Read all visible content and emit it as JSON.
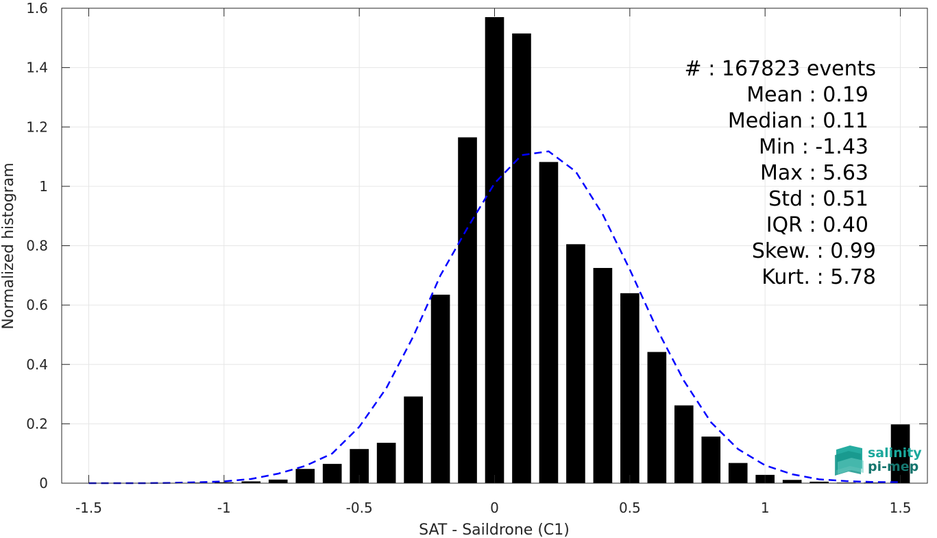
{
  "chart_data": {
    "type": "bar",
    "title": "",
    "xlabel": "SAT - Saildrone (C1)",
    "ylabel": "Normalized histogram",
    "xlim": [
      -1.6,
      1.6
    ],
    "ylim": [
      0,
      1.6
    ],
    "grid": true,
    "xticks": [
      -1.5,
      -1,
      -0.5,
      0,
      0.5,
      1,
      1.5
    ],
    "xtick_labels": [
      "-1.5",
      "-1",
      "-0.5",
      "0",
      "0.5",
      "1",
      "1.5"
    ],
    "yticks": [
      0,
      0.2,
      0.4,
      0.6,
      0.8,
      1,
      1.2,
      1.4,
      1.6
    ],
    "ytick_labels": [
      "0",
      "0.2",
      "0.4",
      "0.6",
      "0.8",
      "1",
      "1.2",
      "1.4",
      "1.6"
    ],
    "bar_width": 0.07,
    "bar_color": "#000000",
    "bars": {
      "x": [
        -1.5,
        -1.4,
        -1.3,
        -1.2,
        -1.1,
        -1.0,
        -0.9,
        -0.8,
        -0.7,
        -0.6,
        -0.5,
        -0.4,
        -0.3,
        -0.2,
        -0.1,
        0.0,
        0.1,
        0.2,
        0.3,
        0.4,
        0.5,
        0.6,
        0.7,
        0.8,
        0.9,
        1.0,
        1.1,
        1.2,
        1.3,
        1.4,
        1.5
      ],
      "values": [
        0.0005,
        0.0005,
        0.001,
        0.001,
        0.002,
        0.003,
        0.006,
        0.012,
        0.048,
        0.065,
        0.115,
        0.136,
        0.292,
        0.635,
        1.165,
        1.57,
        1.515,
        1.082,
        0.805,
        0.725,
        0.64,
        0.442,
        0.262,
        0.157,
        0.068,
        0.028,
        0.011,
        0.005,
        0.002,
        0.002,
        0.198
      ]
    },
    "fit_curve": {
      "style": "dashed",
      "color": "#0000ff",
      "x": [
        -1.5,
        -1.4,
        -1.3,
        -1.2,
        -1.1,
        -1.0,
        -0.9,
        -0.8,
        -0.7,
        -0.6,
        -0.5,
        -0.4,
        -0.3,
        -0.2,
        -0.1,
        0.0,
        0.1,
        0.2,
        0.3,
        0.4,
        0.5,
        0.6,
        0.7,
        0.8,
        0.9,
        1.0,
        1.1,
        1.2,
        1.3,
        1.4,
        1.5
      ],
      "y": [
        0.0,
        0.0,
        0.0,
        0.001,
        0.003,
        0.006,
        0.014,
        0.032,
        0.058,
        0.1,
        0.19,
        0.32,
        0.495,
        0.7,
        0.86,
        1.01,
        1.105,
        1.118,
        1.05,
        0.905,
        0.72,
        0.52,
        0.345,
        0.205,
        0.115,
        0.06,
        0.03,
        0.013,
        0.007,
        0.004,
        0.003
      ]
    },
    "annotations": [
      "#  : 167823 events",
      "Mean : 0.19",
      "Median : 0.11",
      "Min : -1.43",
      "Max : 5.63",
      "Std : 0.51",
      "IQR : 0.40",
      "Skew. : 0.99",
      "Kurt. : 5.78"
    ]
  },
  "logo": {
    "line1": "salinity",
    "line2": "pi-mep",
    "colors": [
      "#1aa89c",
      "#15756e"
    ]
  }
}
